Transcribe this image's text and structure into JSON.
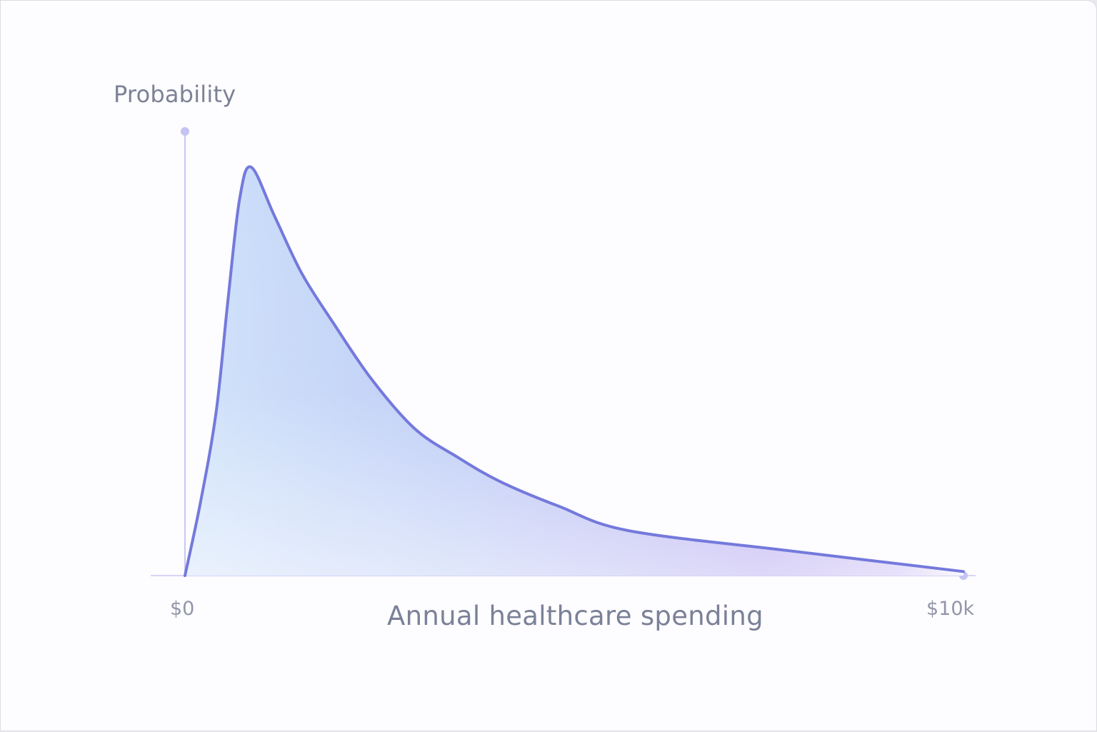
{
  "colors": {
    "curve": "#7479dc",
    "fill_left": "#c7dcf8",
    "fill_right": "#b6a3ee",
    "axis": "#c9c6f2",
    "text": "#7c8296"
  },
  "chart_data": {
    "type": "area",
    "title": "",
    "xlabel": "Annual healthcare spending",
    "ylabel": "Probability",
    "x_tick_labels": [
      "$0",
      "$10k"
    ],
    "xlim": [
      0,
      10000
    ],
    "ylim": [
      0,
      1.05
    ],
    "grid": false,
    "legend": null,
    "distribution": "right-skewed (log-normal-like), no y-axis numeric ticks; y normalized to peak = 1",
    "x": [
      0,
      200,
      400,
      550,
      700,
      850,
      1150,
      1500,
      1900,
      2400,
      2950,
      3500,
      4050,
      4800,
      5700,
      7800,
      10000
    ],
    "values": [
      0.0,
      0.18,
      0.4,
      0.67,
      0.92,
      1.0,
      0.88,
      0.74,
      0.62,
      0.48,
      0.36,
      0.29,
      0.23,
      0.17,
      0.11,
      0.06,
      0.01
    ]
  },
  "labels": {
    "y_axis": "Probability",
    "x_axis": "Annual healthcare spending",
    "x_min": "$0",
    "x_max": "$10k"
  }
}
